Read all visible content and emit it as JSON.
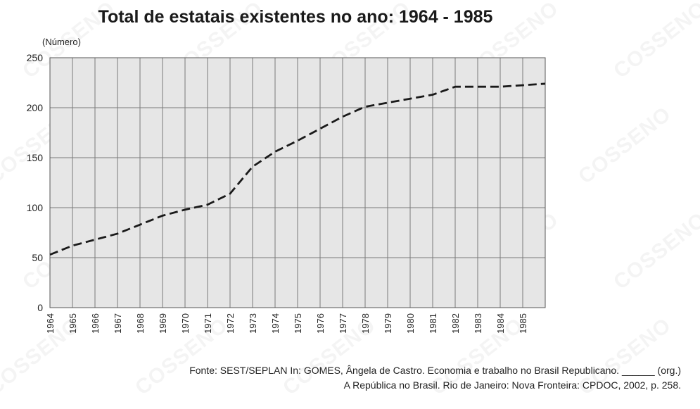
{
  "chart_data": {
    "type": "line",
    "title": "Total de estatais existentes no ano: 1964 - 1985",
    "ylabel": "(Número)",
    "xlabel": "",
    "x": [
      "1964",
      "1965",
      "1966",
      "1967",
      "1968",
      "1969",
      "1970",
      "1971",
      "1972",
      "1973",
      "1974",
      "1975",
      "1976",
      "1977",
      "1978",
      "1979",
      "1980",
      "1981",
      "1982",
      "1983",
      "1984",
      "1985"
    ],
    "series": [
      {
        "values": [
          53,
          62,
          68,
          74,
          83,
          92,
          98,
          103,
          114,
          141,
          156,
          167,
          179,
          191,
          201,
          205,
          209,
          213,
          221,
          221,
          221,
          224
        ]
      }
    ],
    "ylim": [
      0,
      250
    ],
    "yticks": [
      0,
      50,
      100,
      150,
      200,
      250
    ],
    "grid": true,
    "line_style": "dashed",
    "line_color": "#1a1a1a",
    "plot_background": "#e6e6e6",
    "grid_color": "#7a7a7a"
  },
  "source": {
    "line1": "Fonte: SEST/SEPLAN In: GOMES, Ângela de Castro. Economia e trabalho no Brasil Republicano. ______ (org.)",
    "line2": "A República no Brasil. Rio de Janeiro: Nova Fronteira: CPDOC, 2002, p. 258."
  },
  "watermark": "COSSENO"
}
